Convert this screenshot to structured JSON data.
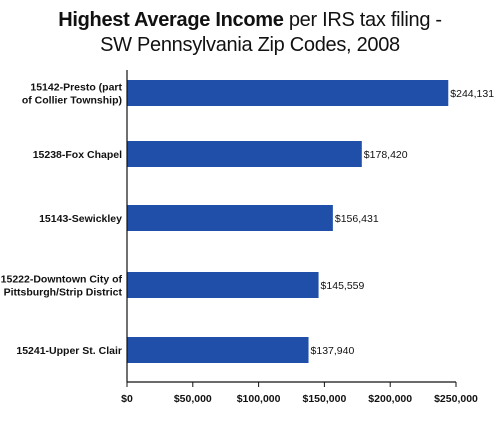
{
  "chart_data": {
    "type": "bar",
    "orientation": "horizontal",
    "title_bold": "Highest Average Income",
    "title_rest": " per IRS tax filing -",
    "subtitle": "SW Pennsylvania Zip Codes, 2008",
    "categories": [
      [
        "15142-Presto (part",
        "of Collier Township)"
      ],
      [
        "15238-Fox Chapel"
      ],
      [
        "15143-Sewickley"
      ],
      [
        "15222-Downtown City of",
        "Pittsburgh/Strip District"
      ],
      [
        "15241-Upper St. Clair"
      ]
    ],
    "values": [
      244131,
      178420,
      156431,
      145559,
      137940
    ],
    "value_labels": [
      "$244,131",
      "$178,420",
      "$156,431",
      "$145,559",
      "$137,940"
    ],
    "xlim": [
      0,
      250000
    ],
    "xticks": [
      0,
      50000,
      100000,
      150000,
      200000,
      250000
    ],
    "xtick_labels": [
      "$0",
      "$50,000",
      "$100,000",
      "$150,000",
      "$200,000",
      "$250,000"
    ],
    "bar_color": "#1f4fa8",
    "grid": false,
    "legend": "none"
  }
}
